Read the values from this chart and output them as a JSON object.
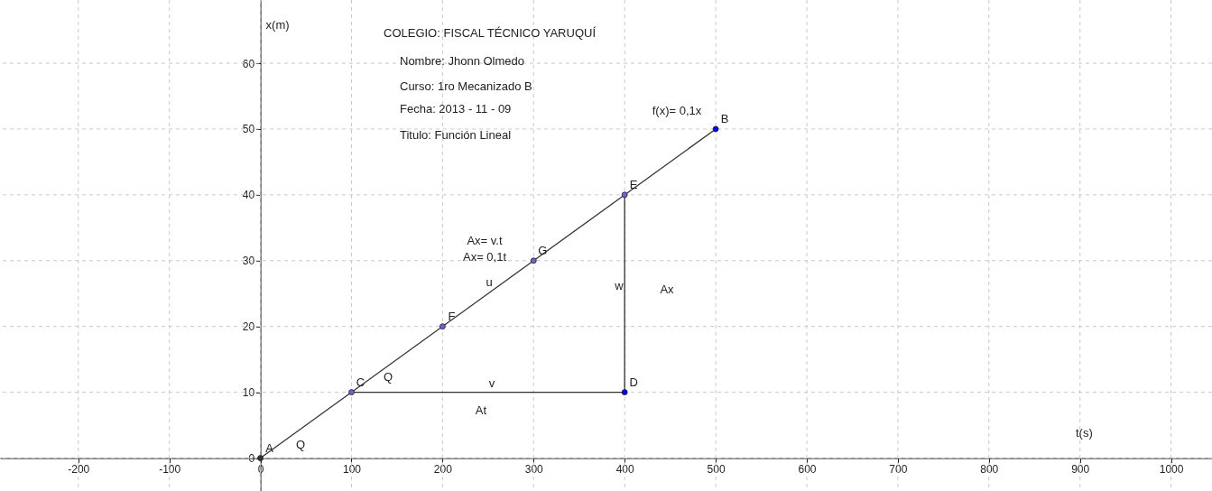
{
  "chart_data": {
    "type": "line",
    "title": "COLEGIO: FISCAL TÉCNICO YARUQUÍ",
    "xlabel": "t(s)",
    "ylabel": "x(m)",
    "annotations": [
      "Nombre: Jhonn Olmedo",
      "Curso: 1ro Mecanizado B",
      "Fecha: 2013 - 11 - 09",
      "Titulo: Función Lineal",
      "Q",
      "Q",
      "v",
      "At",
      "u",
      "Ax= v.t",
      "Ax= 0,1t",
      "w",
      "Ax",
      "f(x)= 0,1x",
      {
        "text": "A",
        "x": 0,
        "y": 0
      },
      {
        "text": "C",
        "x": 100,
        "y": 10
      },
      {
        "text": "F",
        "x": 200,
        "y": 20
      },
      {
        "text": "G",
        "x": 300,
        "y": 30
      },
      {
        "text": "E",
        "x": 400,
        "y": 40
      },
      {
        "text": "D",
        "x": 400,
        "y": 10
      },
      {
        "text": "B",
        "x": 500,
        "y": 50
      }
    ],
    "series": [
      {
        "color": "#333333",
        "x": [
          0,
          500
        ],
        "values": [
          0,
          50
        ]
      },
      {
        "color": "#333333",
        "x": [
          100,
          400,
          400
        ],
        "values": [
          10,
          10,
          40
        ]
      },
      {
        "type": "scatter",
        "marker": "circle",
        "x": [
          0,
          100,
          200,
          300,
          400,
          500,
          400
        ],
        "values": [
          0,
          10,
          20,
          30,
          40,
          50,
          10
        ],
        "colors": [
          "#333333",
          "#6666cc",
          "#6666cc",
          "#6666cc",
          "#6666cc",
          "#0000ff",
          "#0000ff"
        ]
      }
    ],
    "xlim": [
      -286,
      1045
    ],
    "ylim": [
      -5,
      69.6
    ],
    "xticks": [
      -200,
      -100,
      0,
      100,
      200,
      300,
      400,
      500,
      600,
      700,
      800,
      900,
      1000
    ],
    "yticks": [
      0,
      10,
      20,
      30,
      40,
      50,
      60
    ],
    "grid": true
  }
}
